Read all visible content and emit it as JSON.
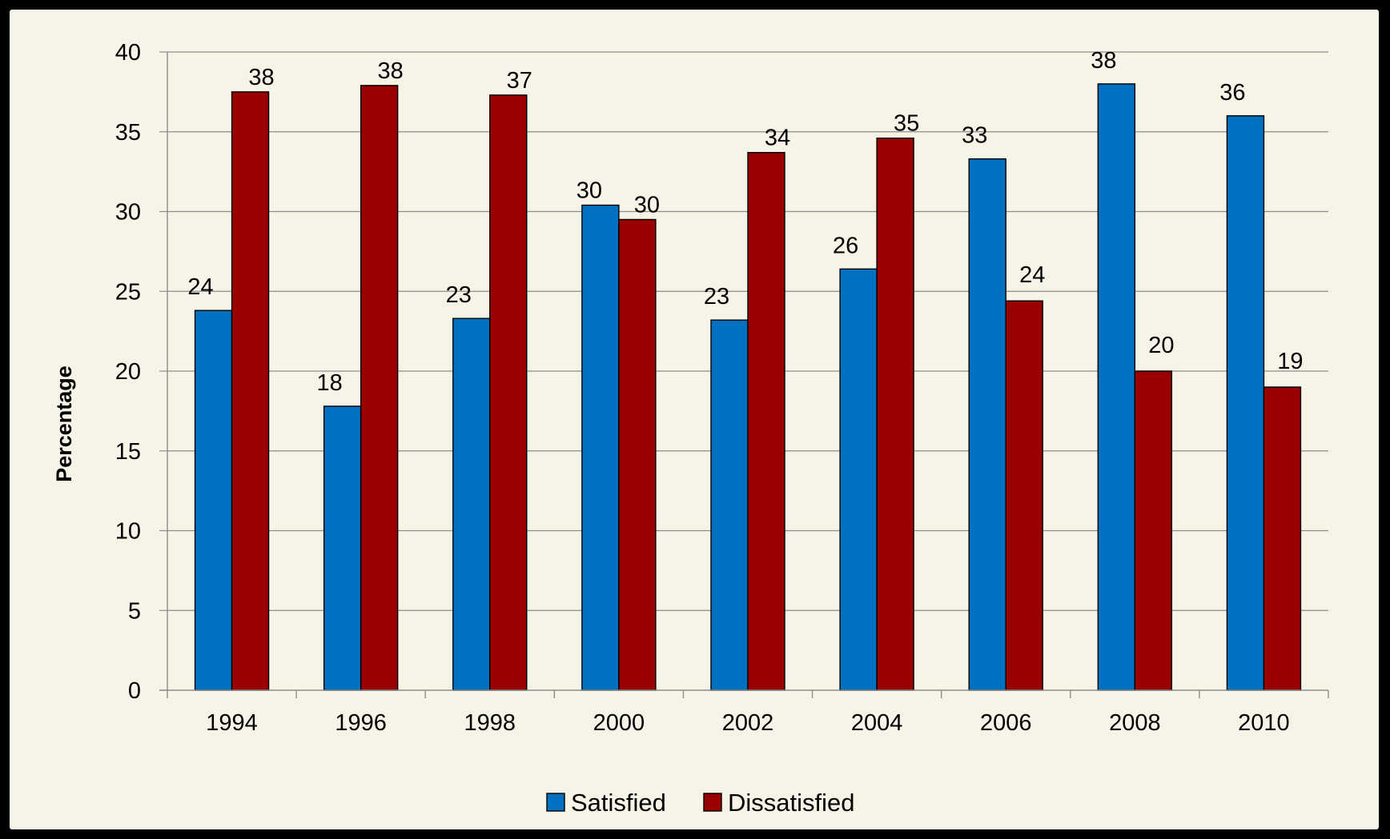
{
  "chart_data": {
    "type": "bar",
    "title": "",
    "xlabel": "",
    "ylabel": "Percentage",
    "ylim": [
      0,
      40
    ],
    "yticks": [
      0,
      5,
      10,
      15,
      20,
      25,
      30,
      35,
      40
    ],
    "categories": [
      "1994",
      "1996",
      "1998",
      "2000",
      "2002",
      "2004",
      "2006",
      "2008",
      "2010"
    ],
    "series": [
      {
        "name": "Satisfied",
        "color": "#0070c0",
        "values": [
          23.8,
          17.8,
          23.3,
          30.4,
          23.2,
          26.4,
          33.3,
          38.0,
          36.0
        ],
        "labels": [
          "24",
          "18",
          "23",
          "30",
          "23",
          "26",
          "33",
          "38",
          "36"
        ]
      },
      {
        "name": "Dissatisfied",
        "color": "#990000",
        "values": [
          37.5,
          37.9,
          37.3,
          29.5,
          33.7,
          34.6,
          24.4,
          20.0,
          19.0
        ],
        "labels": [
          "38",
          "38",
          "37",
          "30",
          "34",
          "35",
          "24",
          "20",
          "19"
        ]
      }
    ],
    "grid": true,
    "legend": "bottom-center"
  }
}
